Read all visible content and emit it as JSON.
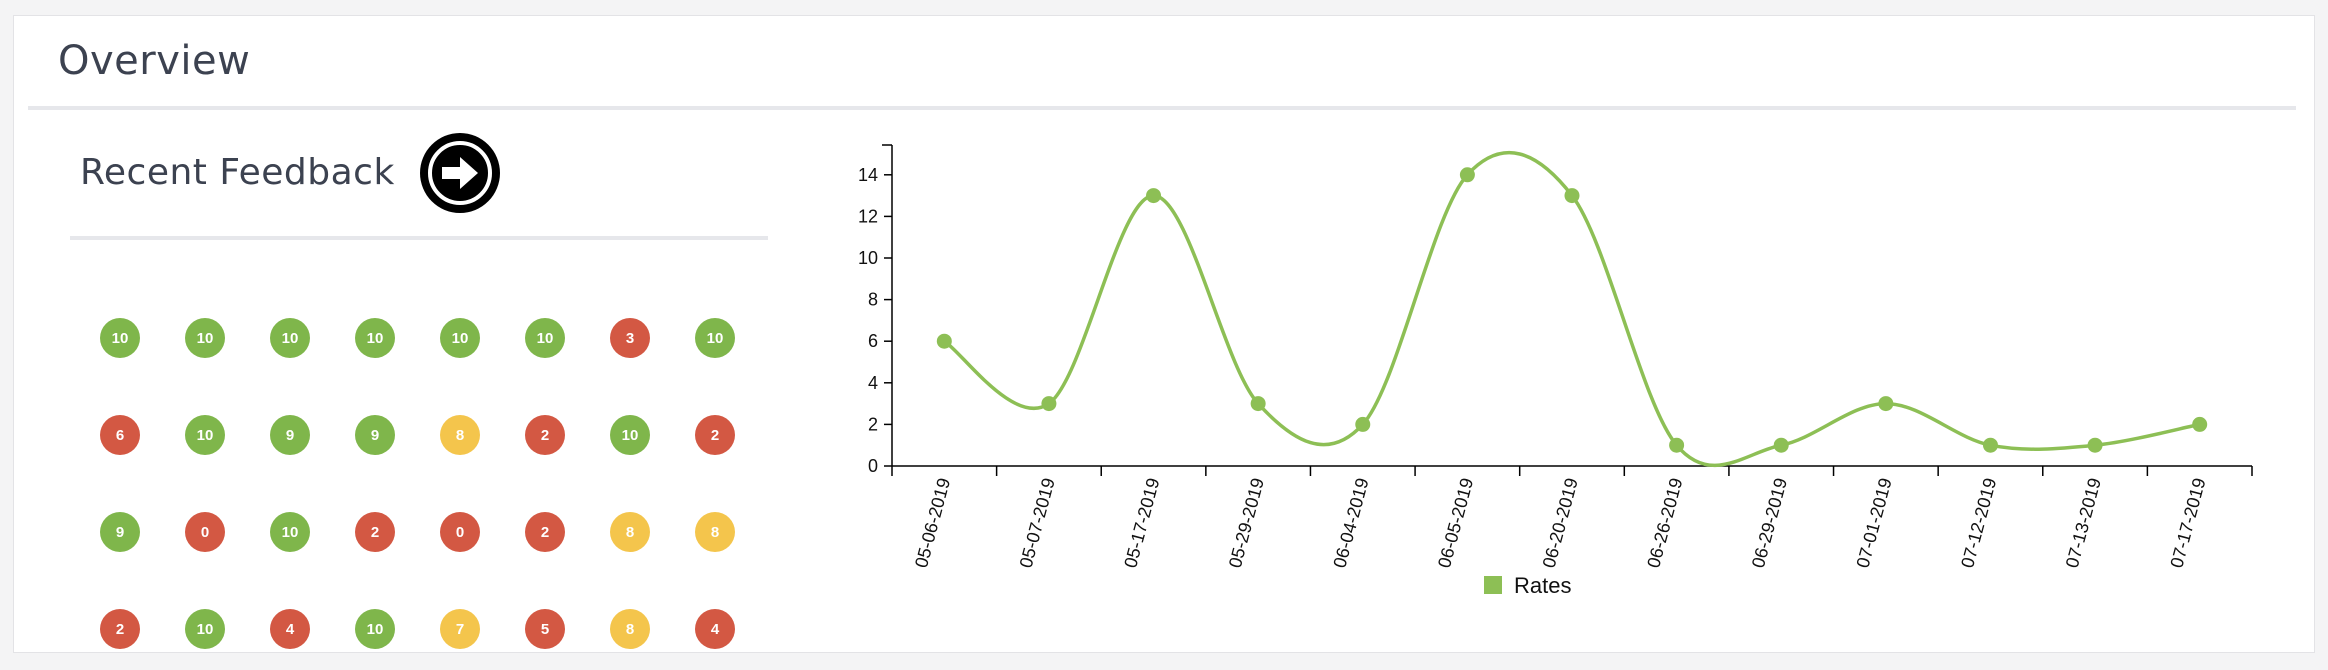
{
  "header": {
    "title": "Overview"
  },
  "feedback": {
    "title": "Recent Feedback",
    "colors": {
      "good": "#7fb64b",
      "mid": "#f4c54c",
      "bad": "#d35843"
    },
    "scores": [
      [
        10,
        10,
        10,
        10,
        10,
        10,
        3,
        10
      ],
      [
        6,
        10,
        9,
        9,
        8,
        2,
        10,
        2
      ],
      [
        9,
        0,
        10,
        2,
        0,
        2,
        8,
        8
      ],
      [
        2,
        10,
        4,
        10,
        7,
        5,
        8,
        4
      ]
    ]
  },
  "chart_data": {
    "type": "line",
    "categories": [
      "05-06-2019",
      "05-07-2019",
      "05-17-2019",
      "05-29-2019",
      "06-04-2019",
      "06-05-2019",
      "06-20-2019",
      "06-26-2019",
      "06-29-2019",
      "07-01-2019",
      "07-12-2019",
      "07-13-2019",
      "07-17-2019"
    ],
    "series": [
      {
        "name": "Rates",
        "values": [
          6,
          3,
          13,
          3,
          2,
          14,
          13,
          1,
          1,
          3,
          1,
          1,
          2
        ],
        "color": "#8dbf55"
      }
    ],
    "ylim": [
      0,
      15
    ],
    "yticks": [
      0,
      2,
      4,
      6,
      8,
      10,
      12,
      14
    ],
    "smooth": true,
    "grid": false,
    "legend": "bottom"
  }
}
